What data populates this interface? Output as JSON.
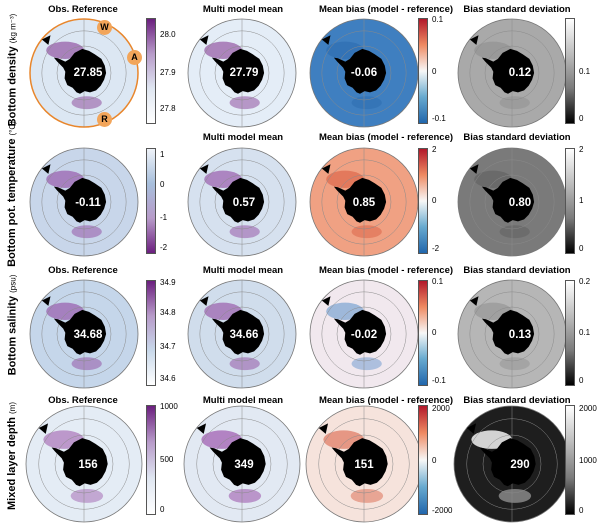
{
  "rows": [
    {
      "label": "Bottom density",
      "unit": "(kg m⁻³)",
      "titles": [
        "Obs. Reference",
        "Multi model mean",
        "Mean bias (model - reference)",
        "Bias standard deviation"
      ],
      "values": [
        "27.85",
        "27.79",
        "-0.06",
        "0.12"
      ],
      "ticks": [
        [
          "28.0",
          "27.9",
          "27.8"
        ],
        [
          "0.1",
          "0",
          "-0.1"
        ],
        [
          "0.1",
          "0"
        ]
      ],
      "sectors": [
        "W",
        "A",
        "R"
      ]
    },
    {
      "label": "Bottom pot. temperature",
      "unit": "(°C)",
      "titles": [
        "",
        "Multi model mean",
        "Mean bias (model - reference)",
        "Bias standard deviation"
      ],
      "values": [
        "-0.11",
        "0.57",
        "0.85",
        "0.80"
      ],
      "ticks": [
        [
          "1",
          "0",
          "-1",
          "-2"
        ],
        [
          "2",
          "0",
          "-2"
        ],
        [
          "2",
          "1",
          "0"
        ]
      ]
    },
    {
      "label": "Bottom salinity",
      "unit": "(psu)",
      "titles": [
        "Obs. Reference",
        "Multi model mean",
        "Mean bias (model - reference)",
        "Bias standard deviation"
      ],
      "values": [
        "34.68",
        "34.66",
        "-0.02",
        "0.13"
      ],
      "ticks": [
        [
          "34.9",
          "34.8",
          "34.7",
          "34.6"
        ],
        [
          "0.1",
          "0",
          "-0.1"
        ],
        [
          "0.2",
          "0.1",
          "0"
        ]
      ]
    },
    {
      "label": "Mixed layer depth",
      "unit": "(m)",
      "titles": [
        "Obs. Reference",
        "Multi model mean",
        "Mean bias (model - reference)",
        "Bias standard deviation"
      ],
      "values": [
        "156",
        "349",
        "151",
        "290"
      ],
      "ticks": [
        [
          "1000",
          "500",
          "0"
        ],
        [
          "2000",
          "0",
          "-2000"
        ],
        [
          "2000",
          "1000",
          "0"
        ]
      ]
    }
  ],
  "colors": {
    "obs_light": "#c8d8ea",
    "obs_purple": "#7e2e8c",
    "bias_blue": "#3f7fc0",
    "bias_red": "#d8593c",
    "bias_white": "#f5eeea",
    "std_gray": "#9a9a9a",
    "land": "#000000",
    "sector_orange": "#e8862c"
  }
}
